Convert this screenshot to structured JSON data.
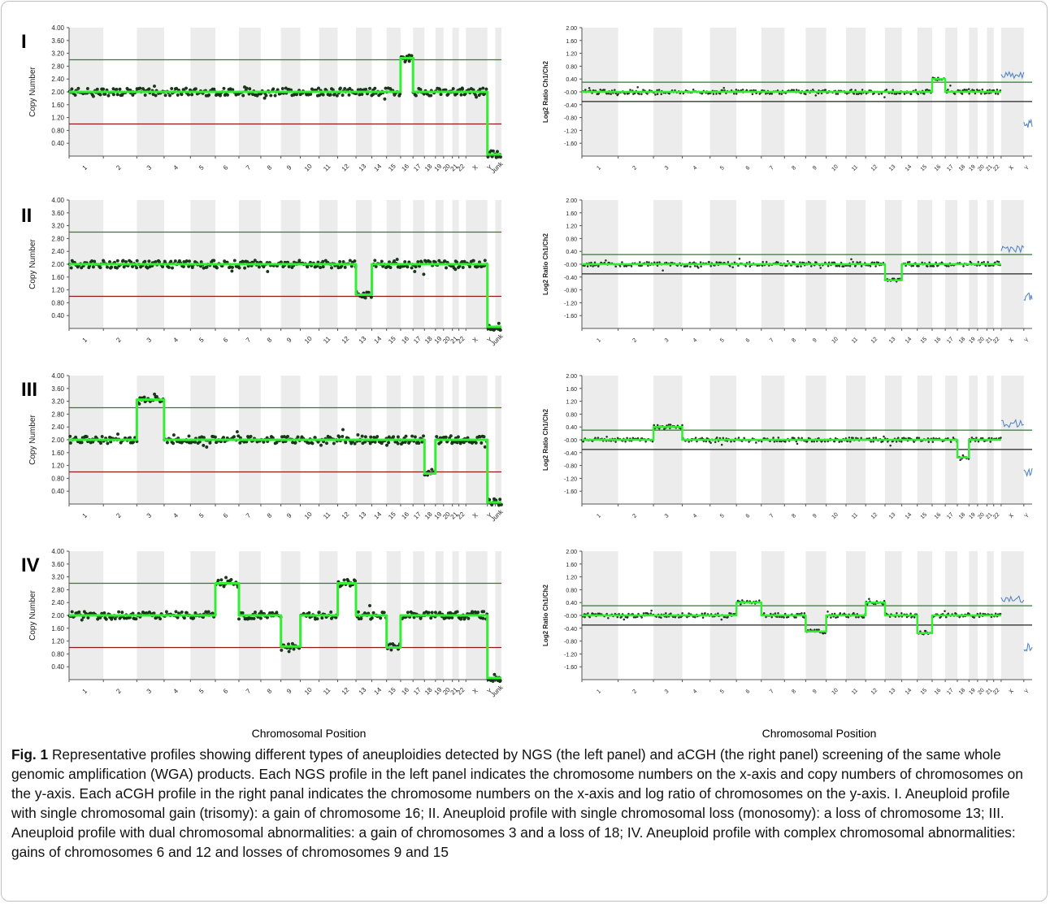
{
  "figure": {
    "roman_labels": [
      "I",
      "II",
      "III",
      "IV"
    ],
    "x_axis_label_left": "Chromosomal Position",
    "x_axis_label_right": "Chromosomal Position",
    "caption_bold": "Fig. 1",
    "caption_text": "Representative profiles showing different types of aneuploidies detected by NGS (the left panel) and aCGH (the right panel) screening of the same whole genomic amplification (WGA) products. Each NGS profile in the left panel indicates the chromosome numbers on the x-axis and copy numbers of chromosomes on the y-axis. Each aCGH profile in the right panal indicates the chromosome numbers on the x-axis and log ratio of chromosomes on the y-axis. I. Aneuploid profile with single chromosomal gain (trisomy): a gain of chromosome 16; II. Aneuploid profile with single chromosomal loss (monosomy): a loss of chromosome 13; III. Aneuploid profile with dual chromosomal abnormalities: a gain of chromosomes 3 and a loss of 18; IV. Aneuploid profile with complex chromosomal abnormalities: gains of chromosomes 6 and 12 and losses of chromosomes 9 and 15"
  },
  "colors": {
    "segment": "#33ee33",
    "points": "#1a3a1a",
    "gain_line": "#2e7d32",
    "loss_line_ngs": "#8b1a1a",
    "loss_line_acgh": "#222222",
    "band": "#ececec",
    "sex_trace": "#4a7fc1"
  },
  "chart_data": [
    {
      "type": "line",
      "panel": "I",
      "method": "NGS",
      "ylabel": "Copy Number",
      "yticks": [
        "4.00",
        "3.60",
        "3.20",
        "2.80",
        "2.40",
        "2.00",
        "1.60",
        "1.20",
        "0.80",
        "0.40"
      ],
      "ylim": [
        0,
        4
      ],
      "categories": [
        "1",
        "2",
        "3",
        "4",
        "5",
        "6",
        "7",
        "8",
        "9",
        "10",
        "11",
        "12",
        "13",
        "14",
        "15",
        "16",
        "17",
        "18",
        "19",
        "20",
        "21",
        "22",
        "X",
        "Y",
        "Junk"
      ],
      "tick_labels": [
        "1",
        "2",
        "3",
        "4",
        "5",
        "6",
        "7",
        "8",
        "9",
        "10",
        "11",
        "12",
        "13",
        "14",
        "15",
        "16",
        "17",
        "18",
        "19",
        "20",
        "21",
        "22",
        "X",
        "Y",
        "Junk"
      ],
      "reference_lines": [
        3.0,
        1.0
      ],
      "values": [
        2.0,
        2.0,
        2.0,
        2.0,
        2.0,
        2.0,
        2.0,
        2.0,
        2.0,
        2.0,
        2.0,
        2.0,
        2.0,
        2.0,
        2.0,
        3.05,
        2.0,
        2.0,
        2.0,
        2.0,
        2.0,
        2.0,
        2.0,
        0.05,
        0.05
      ]
    },
    {
      "type": "line",
      "panel": "I",
      "method": "aCGH",
      "ylabel": "Log2 Ratio Ch1/Ch2",
      "yticks": [
        "2.00",
        "1.60",
        "1.20",
        "0.80",
        "0.40",
        "-0.00",
        "-0.40",
        "-0.80",
        "-1.20",
        "-1.60"
      ],
      "ylim": [
        -2,
        2
      ],
      "categories": [
        "1",
        "2",
        "3",
        "4",
        "5",
        "6",
        "7",
        "8",
        "9",
        "10",
        "11",
        "12",
        "13",
        "14",
        "15",
        "16",
        "17",
        "18",
        "19",
        "20",
        "21",
        "22",
        "X",
        "Y"
      ],
      "tick_labels": [
        "1",
        "2",
        "3",
        "4",
        "5",
        "6",
        "7",
        "8",
        "9",
        "10",
        "11",
        "12",
        "13",
        "14",
        "15",
        "16",
        "17",
        "18",
        "19",
        "20",
        "21",
        "22",
        "X",
        "Y"
      ],
      "reference_lines": [
        0.3,
        -0.3
      ],
      "values": [
        0,
        0,
        0,
        0,
        0,
        0,
        0,
        0,
        0,
        0,
        0,
        0,
        0,
        0,
        0,
        0.4,
        0,
        0,
        0,
        0,
        0,
        0,
        0.5,
        -1.0
      ]
    },
    {
      "type": "line",
      "panel": "II",
      "method": "NGS",
      "ylabel": "Copy Number",
      "yticks": [
        "4.00",
        "3.60",
        "3.20",
        "2.80",
        "2.40",
        "2.00",
        "1.60",
        "1.20",
        "0.80",
        "0.40"
      ],
      "ylim": [
        0,
        4
      ],
      "categories": [
        "1",
        "2",
        "3",
        "4",
        "5",
        "6",
        "7",
        "8",
        "9",
        "10",
        "11",
        "12",
        "13",
        "14",
        "15",
        "16",
        "17",
        "18",
        "19",
        "20",
        "21",
        "22",
        "X",
        "Y",
        "Junk"
      ],
      "tick_labels": [
        "1",
        "2",
        "3",
        "4",
        "5",
        "6",
        "7",
        "8",
        "9",
        "10",
        "11",
        "12",
        "13",
        "14",
        "15",
        "16",
        "17",
        "18",
        "19",
        "20",
        "21",
        "22",
        "X",
        "Y",
        "Junk"
      ],
      "reference_lines": [
        3.0,
        1.0
      ],
      "values": [
        2.0,
        2.0,
        2.0,
        2.0,
        2.0,
        2.0,
        2.0,
        2.0,
        2.0,
        2.0,
        2.0,
        2.0,
        1.05,
        2.0,
        2.0,
        2.0,
        2.0,
        2.0,
        2.0,
        2.0,
        2.0,
        2.0,
        2.0,
        0.05,
        0.05
      ]
    },
    {
      "type": "line",
      "panel": "II",
      "method": "aCGH",
      "ylabel": "Log2 Ratio Ch1/Ch2",
      "yticks": [
        "2.00",
        "1.60",
        "1.20",
        "0.80",
        "0.40",
        "-0.00",
        "-0.40",
        "-0.80",
        "-1.20",
        "-1.60"
      ],
      "ylim": [
        -2,
        2
      ],
      "categories": [
        "1",
        "2",
        "3",
        "4",
        "5",
        "6",
        "7",
        "8",
        "9",
        "10",
        "11",
        "12",
        "13",
        "14",
        "15",
        "16",
        "17",
        "18",
        "19",
        "20",
        "21",
        "22",
        "X",
        "Y"
      ],
      "tick_labels": [
        "1",
        "2",
        "3",
        "4",
        "5",
        "6",
        "7",
        "8",
        "9",
        "10",
        "11",
        "12",
        "13",
        "14",
        "15",
        "16",
        "17",
        "18",
        "19",
        "20",
        "21",
        "22",
        "X",
        "Y"
      ],
      "reference_lines": [
        0.3,
        -0.3
      ],
      "values": [
        0,
        0,
        0,
        0,
        0,
        0,
        0,
        0,
        0,
        0,
        0,
        0,
        -0.5,
        0,
        0,
        0,
        0,
        0,
        0,
        0,
        0,
        0,
        0.5,
        -1.0
      ]
    },
    {
      "type": "line",
      "panel": "III",
      "method": "NGS",
      "ylabel": "Copy Number",
      "yticks": [
        "4.00",
        "3.60",
        "3.20",
        "2.80",
        "2.40",
        "2.00",
        "1.60",
        "1.20",
        "0.80",
        "0.40"
      ],
      "ylim": [
        0,
        4
      ],
      "categories": [
        "1",
        "2",
        "3",
        "4",
        "5",
        "6",
        "7",
        "8",
        "9",
        "10",
        "11",
        "12",
        "13",
        "14",
        "15",
        "16",
        "17",
        "18",
        "19",
        "20",
        "21",
        "22",
        "X",
        "Y",
        "Junk"
      ],
      "tick_labels": [
        "1",
        "2",
        "3",
        "4",
        "5",
        "6",
        "7",
        "8",
        "9",
        "10",
        "11",
        "12",
        "13",
        "14",
        "15",
        "16",
        "17",
        "18",
        "19",
        "20",
        "21",
        "22",
        "X",
        "Y",
        "Junk"
      ],
      "reference_lines": [
        3.0,
        1.0
      ],
      "values": [
        2.0,
        2.0,
        3.25,
        2.0,
        2.0,
        2.0,
        2.0,
        2.0,
        2.0,
        2.0,
        2.0,
        2.0,
        2.0,
        2.0,
        2.0,
        2.0,
        2.0,
        0.95,
        2.0,
        2.0,
        2.0,
        2.0,
        2.0,
        0.05,
        0.05
      ]
    },
    {
      "type": "line",
      "panel": "III",
      "method": "aCGH",
      "ylabel": "Log2 Ratio Ch1/Ch2",
      "yticks": [
        "2.00",
        "1.60",
        "1.20",
        "0.80",
        "0.40",
        "-0.00",
        "-0.40",
        "-0.80",
        "-1.20",
        "-1.60"
      ],
      "ylim": [
        -2,
        2
      ],
      "categories": [
        "1",
        "2",
        "3",
        "4",
        "5",
        "6",
        "7",
        "8",
        "9",
        "10",
        "11",
        "12",
        "13",
        "14",
        "15",
        "16",
        "17",
        "18",
        "19",
        "20",
        "21",
        "22",
        "X",
        "Y"
      ],
      "tick_labels": [
        "1",
        "2",
        "3",
        "4",
        "5",
        "6",
        "7",
        "8",
        "9",
        "10",
        "11",
        "12",
        "13",
        "14",
        "15",
        "16",
        "17",
        "18",
        "19",
        "20",
        "21",
        "22",
        "X",
        "Y"
      ],
      "reference_lines": [
        0.3,
        -0.3
      ],
      "values": [
        0,
        0,
        0.4,
        0,
        0,
        0,
        0,
        0,
        0,
        0,
        0,
        0,
        0,
        0,
        0,
        0,
        0,
        -0.55,
        0,
        0,
        0,
        0,
        0.5,
        -1.0
      ]
    },
    {
      "type": "line",
      "panel": "IV",
      "method": "NGS",
      "ylabel": "Copy Number",
      "yticks": [
        "4.00",
        "3.60",
        "3.20",
        "2.80",
        "2.40",
        "2.00",
        "1.60",
        "1.20",
        "0.80",
        "0.40"
      ],
      "ylim": [
        0,
        4
      ],
      "categories": [
        "1",
        "2",
        "3",
        "4",
        "5",
        "6",
        "7",
        "8",
        "9",
        "10",
        "11",
        "12",
        "13",
        "14",
        "15",
        "16",
        "17",
        "18",
        "19",
        "20",
        "21",
        "22",
        "X",
        "Y",
        "Junk"
      ],
      "tick_labels": [
        "1",
        "2",
        "3",
        "4",
        "5",
        "6",
        "7",
        "8",
        "9",
        "10",
        "11",
        "12",
        "13",
        "14",
        "15",
        "16",
        "17",
        "18",
        "19",
        "20",
        "21",
        "22",
        "X",
        "Y",
        "Junk"
      ],
      "reference_lines": [
        3.0,
        1.0
      ],
      "values": [
        2.0,
        2.0,
        2.0,
        2.0,
        2.0,
        3.0,
        2.0,
        2.0,
        1.03,
        2.0,
        2.0,
        3.0,
        2.0,
        2.0,
        1.0,
        2.0,
        2.0,
        2.0,
        2.0,
        2.0,
        2.0,
        2.0,
        2.0,
        0.05,
        0.05
      ]
    },
    {
      "type": "line",
      "panel": "IV",
      "method": "aCGH",
      "ylabel": "Log2 Ratio Ch1/Ch2",
      "yticks": [
        "2.00",
        "1.60",
        "1.20",
        "0.80",
        "0.40",
        "-0.00",
        "-0.40",
        "-0.80",
        "-1.20",
        "-1.60"
      ],
      "ylim": [
        -2,
        2
      ],
      "categories": [
        "1",
        "2",
        "3",
        "4",
        "5",
        "6",
        "7",
        "8",
        "9",
        "10",
        "11",
        "12",
        "13",
        "14",
        "15",
        "16",
        "17",
        "18",
        "19",
        "20",
        "21",
        "22",
        "X",
        "Y"
      ],
      "tick_labels": [
        "1",
        "2",
        "3",
        "4",
        "5",
        "6",
        "7",
        "8",
        "9",
        "10",
        "11",
        "12",
        "13",
        "14",
        "15",
        "16",
        "17",
        "18",
        "19",
        "20",
        "21",
        "22",
        "X",
        "Y"
      ],
      "reference_lines": [
        0.3,
        -0.3
      ],
      "values": [
        0,
        0,
        0,
        0,
        0,
        0.4,
        0,
        0,
        -0.5,
        0,
        0,
        0.4,
        0,
        0,
        -0.55,
        0,
        0,
        0,
        0,
        0,
        0,
        0,
        0.5,
        -1.0
      ]
    }
  ]
}
